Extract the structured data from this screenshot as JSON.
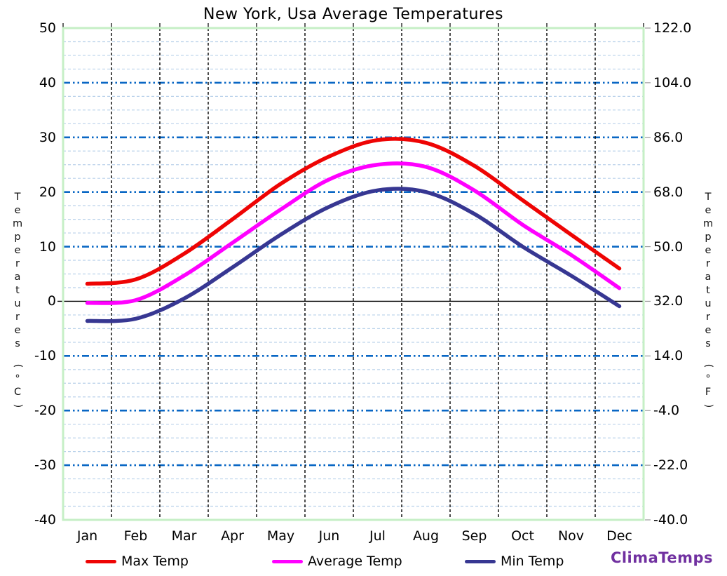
{
  "title": "New York, Usa Average Temperatures",
  "branding": "ClimaTemps",
  "brand_color": "#7030a0",
  "chart_data": {
    "type": "line",
    "title": "New York, Usa Average Temperatures",
    "categories": [
      "Jan",
      "Feb",
      "Mar",
      "Apr",
      "May",
      "Jun",
      "Jul",
      "Aug",
      "Sep",
      "Oct",
      "Nov",
      "Dec"
    ],
    "series": [
      {
        "name": "Max Temp",
        "color": "#ee0404",
        "values": [
          3.2,
          4.0,
          8.7,
          15.0,
          21.5,
          26.5,
          29.5,
          29.0,
          24.8,
          18.5,
          12.2,
          6.0
        ]
      },
      {
        "name": "Average Temp",
        "color": "#ff00ff",
        "values": [
          -0.3,
          0.2,
          4.7,
          10.7,
          16.8,
          22.3,
          25.0,
          24.6,
          20.3,
          14.0,
          8.5,
          2.4
        ]
      },
      {
        "name": "Min Temp",
        "color": "#373792",
        "values": [
          -3.6,
          -3.2,
          0.5,
          6.2,
          12.2,
          17.3,
          20.3,
          20.0,
          16.0,
          10.0,
          4.7,
          -0.9
        ]
      }
    ],
    "y_axis_left": {
      "label": "Temperatures (°C)",
      "min": -40,
      "max": 50,
      "tick_step": 10,
      "ticks": [
        50,
        40,
        30,
        20,
        10,
        0,
        -10,
        -20,
        -30,
        -40
      ]
    },
    "y_axis_right": {
      "label": "Temperatures (°F)",
      "ticks": [
        "122.0",
        "104.0",
        "86.0",
        "68.0",
        "50.0",
        "32.0",
        "14.0",
        "-4.0",
        "-22.0",
        "-40.0"
      ]
    },
    "grid": {
      "major_color": "#0967c4",
      "minor_color": "#b9d1ea",
      "vertical_color": "#000000",
      "minor_step_c": 2.5,
      "border_color": "#c6efc6",
      "zero_line_color": "#000000"
    },
    "legend_position": "bottom",
    "xlabel": "",
    "ylabel_left": "Temperatures (°C)",
    "ylabel_right": "Temperatures (°F)"
  }
}
